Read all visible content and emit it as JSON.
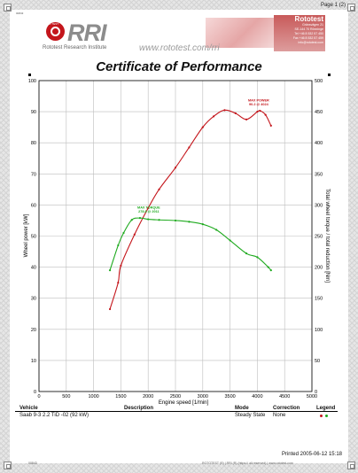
{
  "page_number": "Page 1 (2)",
  "header": {
    "id_text": "00843",
    "logo_tag": "ROTO TEST",
    "logo_text": "RRI",
    "logo_caption": "Rototest Research Institute",
    "website": "www.rototest.com/rri",
    "contact_brand": "Rototest",
    "contact_lines": [
      "Gränsvägen 21",
      "SE-144 70 Rönninge",
      "Tel +46 8 532 57 450",
      "Fax +46 8 532 57 459",
      "info@rototest.com"
    ]
  },
  "title": "Certificate of Performance",
  "chart_data": {
    "type": "line",
    "xlabel": "Engine speed [1/min]",
    "ylabel_left": "Wheel power [kW]",
    "ylabel_right": "Total wheel torque / total reduction [Nm]",
    "x_ticks": [
      "0",
      "500",
      "1000",
      "1500",
      "2000",
      "2500",
      "3000",
      "3500",
      "4000",
      "4500",
      "5000"
    ],
    "y_left_ticks": [
      "0",
      "10",
      "20",
      "30",
      "40",
      "50",
      "60",
      "70",
      "80",
      "90",
      "100"
    ],
    "y_right_ticks": [
      "0",
      "50",
      "100",
      "150",
      "200",
      "250",
      "300",
      "350",
      "400",
      "450",
      "500"
    ],
    "xlim": [
      0,
      5000
    ],
    "ylim_left": [
      0,
      100
    ],
    "ylim_right": [
      0,
      500
    ],
    "grid": true,
    "series": [
      {
        "name": "Wheel power",
        "axis": "left",
        "color": "#c4161c",
        "x": [
          1300,
          1450,
          1500,
          1750,
          2000,
          2200,
          2500,
          2750,
          3000,
          3200,
          3400,
          3600,
          3800,
          4000,
          4050,
          4150,
          4250
        ],
        "y": [
          26.5,
          35,
          40.5,
          50.5,
          59,
          65,
          72,
          78.5,
          85,
          88.5,
          90.5,
          89.5,
          87.5,
          90,
          90.3,
          89,
          85.5
        ]
      },
      {
        "name": "Wheel torque",
        "axis": "right",
        "color": "#1faa1f",
        "x": [
          1300,
          1450,
          1550,
          1700,
          1850,
          2000,
          2200,
          2500,
          2750,
          3000,
          3250,
          3500,
          3800,
          4000,
          4200,
          4250
        ],
        "y": [
          195,
          235,
          255,
          276,
          279,
          277,
          276,
          275,
          273,
          269,
          260,
          243,
          222,
          216,
          200,
          195
        ]
      }
    ],
    "annotations": [
      {
        "series": "Wheel power",
        "lines": [
          "MAX POWER",
          "90.2 @ 4024"
        ],
        "x": 4024,
        "y": 90.2
      },
      {
        "series": "Wheel torque",
        "lines": [
          "MAX TORQUE",
          "278.8 @ 2011"
        ],
        "x": 2011,
        "y": 278.8
      }
    ]
  },
  "table": {
    "headers": {
      "vehicle": "Vehicle",
      "description": "Description",
      "mode": "Mode",
      "correction": "Correction",
      "legend": "Legend"
    },
    "row": {
      "vehicle": "Saab 9-3 2.2 TiD -02 (92 kW)",
      "description": "",
      "mode": "Steady State",
      "correction": "None"
    },
    "legend_colors": [
      "#c4161c",
      "#1faa1f"
    ]
  },
  "footer": {
    "printed": "Printed 2005-06-12 15:18",
    "left_code": "00843",
    "right_text": "ROTOTEST (R) | RRI (R) (https:// all reserved) | www.rototest.com"
  }
}
